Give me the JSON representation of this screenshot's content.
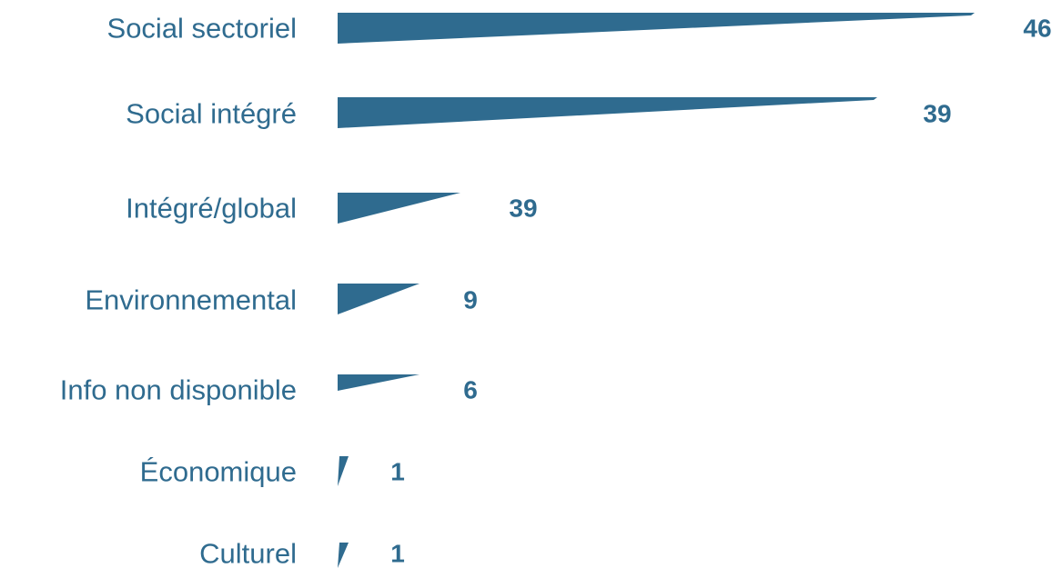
{
  "chart_data": {
    "type": "bar",
    "orientation": "horizontal",
    "categories": [
      "Social sectoriel",
      "Social intégré",
      "Intégré/global",
      "Environnemental",
      "Info non disponible",
      "Économique",
      "Culturel"
    ],
    "values": [
      46,
      39,
      39,
      9,
      6,
      1,
      1
    ],
    "value_labels": [
      "46",
      "39",
      "39",
      "9",
      "6",
      "1",
      "1"
    ],
    "bar_color": "#2f6b8f",
    "title": "",
    "xlabel": "",
    "ylabel": "",
    "grid": false,
    "legend": "none"
  }
}
